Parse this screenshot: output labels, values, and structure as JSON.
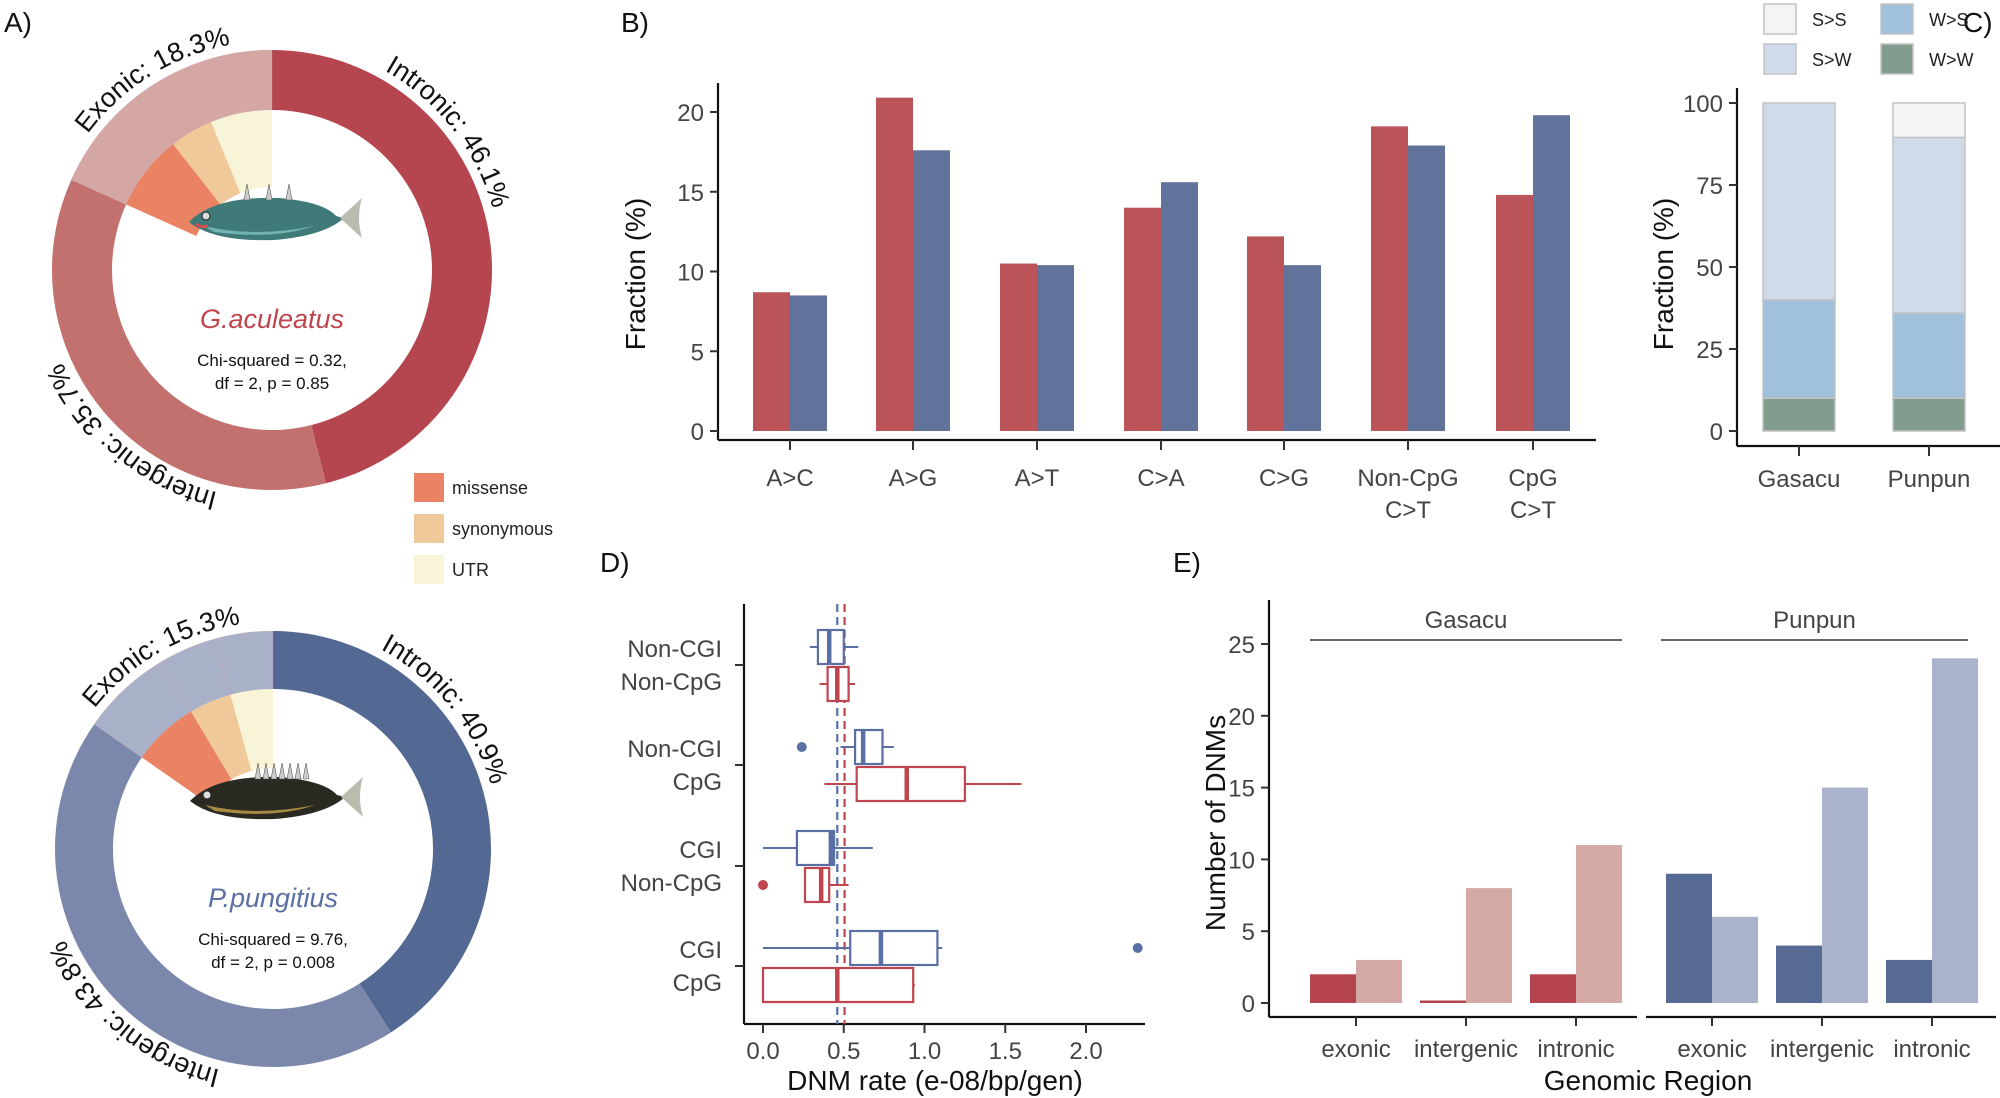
{
  "chart_data": [
    {
      "type": "pie",
      "variant": "donut",
      "panel": "A)",
      "species": "G.aculeatus",
      "species_color": "#c0454f",
      "stats": [
        "Chi-squared = 0.32,",
        "df = 2, p = 0.85"
      ],
      "slices": [
        {
          "name": "Intronic",
          "label": "Intronic: 46.1%",
          "value": 46.1,
          "color": "#b5454f"
        },
        {
          "name": "Intergenic",
          "label": "Intergenic: 35.7%",
          "value": 35.7,
          "color": "#c3716f"
        },
        {
          "name": "Exonic",
          "label": "Exonic: 18.3%",
          "value": 18.3,
          "color": "#d4a6a4"
        }
      ],
      "exonic_breakdown": [
        {
          "name": "UTR",
          "share": 0.34
        },
        {
          "name": "synonymous",
          "share": 0.24
        },
        {
          "name": "missense",
          "share": 0.42
        }
      ]
    },
    {
      "type": "pie",
      "variant": "donut",
      "species": "P.pungitius",
      "species_color": "#5a6fa3",
      "stats": [
        "Chi-squared = 9.76,",
        "df = 2, p = 0.008"
      ],
      "slices": [
        {
          "name": "Intronic",
          "label": "Intronic: 40.9%",
          "value": 40.9,
          "color": "#536892"
        },
        {
          "name": "Intergenic",
          "label": "Intergenic: 43.8%",
          "value": 43.8,
          "color": "#7b87ab"
        },
        {
          "name": "Exonic",
          "label": "Exonic: 15.3%",
          "value": 15.3,
          "color": "#a9b1c9"
        }
      ],
      "exonic_breakdown": [
        {
          "name": "UTR",
          "share": 0.28
        },
        {
          "name": "synonymous",
          "share": 0.28
        },
        {
          "name": "missense",
          "share": 0.44
        }
      ],
      "legend": [
        {
          "label": "missense",
          "color": "#ea8264"
        },
        {
          "label": "synonymous",
          "color": "#f0c99a"
        },
        {
          "label": "UTR",
          "color": "#f7f4d8"
        }
      ]
    },
    {
      "type": "bar",
      "panel": "B)",
      "ylabel": "Fraction (%)",
      "ylim": [
        0,
        22
      ],
      "yticks": [
        0,
        5,
        10,
        15,
        20
      ],
      "categories": [
        [
          "A>C"
        ],
        [
          "A>G"
        ],
        [
          "A>T"
        ],
        [
          "C>A"
        ],
        [
          "C>G"
        ],
        [
          "Non-CpG",
          "C>T"
        ],
        [
          "CpG",
          "C>T"
        ]
      ],
      "series": [
        {
          "values": [
            8.7,
            20.9,
            10.5,
            14.0,
            12.2,
            19.1,
            14.8
          ],
          "color": "#bb5459"
        },
        {
          "values": [
            8.5,
            17.6,
            10.4,
            15.6,
            10.4,
            17.9,
            19.8
          ],
          "color": "#61739b"
        }
      ]
    },
    {
      "type": "bar",
      "stacked": true,
      "panel": "C)",
      "ylabel": "Fraction (%)",
      "ylim": [
        0,
        100
      ],
      "yticks": [
        0,
        25,
        50,
        75,
        100
      ],
      "categories": [
        "Gasacu",
        "Punpun"
      ],
      "series": [
        {
          "name": "W>W",
          "values": [
            10,
            10
          ],
          "color": "#829d8e"
        },
        {
          "name": "W>S",
          "values": [
            30,
            26
          ],
          "color": "#a0c0dc"
        },
        {
          "name": "S>W",
          "values": [
            60,
            53.5
          ],
          "color": "#cfdbe8"
        },
        {
          "name": "S>S",
          "values": [
            0,
            10.5
          ],
          "color": "#f4f3f6"
        }
      ],
      "legend_order": [
        "S>S",
        "W>S",
        "S>W",
        "W>W"
      ],
      "legend_placement": "top"
    },
    {
      "type": "boxplot",
      "orientation": "horizontal",
      "panel": "D)",
      "xlabel": "DNM rate (e-08/bp/gen)",
      "xlim": [
        -0.1,
        2.35
      ],
      "xticks": [
        "0.0",
        "0.5",
        "1.0",
        "1.5",
        "2.0"
      ],
      "categories": [
        [
          "Non-CGI",
          "Non-CpG"
        ],
        [
          "Non-CGI",
          "CpG"
        ],
        [
          "CGI",
          "Non-CpG"
        ],
        [
          "CGI",
          "CpG"
        ]
      ],
      "reference_lines": [
        {
          "value": 0.46,
          "color": "#5a6fa3",
          "style": "dashed"
        },
        {
          "value": 0.505,
          "color": "#c0454f",
          "style": "dashed"
        }
      ],
      "series": [
        {
          "color": "#5a6fa3",
          "boxes": [
            {
              "min": 0.29,
              "q1": 0.34,
              "median": 0.41,
              "q3": 0.5,
              "max": 0.59,
              "outliers": []
            },
            {
              "min": 0.48,
              "q1": 0.57,
              "median": 0.62,
              "q3": 0.74,
              "max": 0.81,
              "outliers": [
                0.24
              ]
            },
            {
              "min": 0.0,
              "q1": 0.21,
              "median": 0.42,
              "q3": 0.44,
              "max": 0.68,
              "outliers": []
            },
            {
              "min": 0.0,
              "q1": 0.54,
              "median": 0.73,
              "q3": 1.08,
              "max": 1.11,
              "outliers": [
                2.32
              ]
            }
          ]
        },
        {
          "color": "#c0454f",
          "boxes": [
            {
              "min": 0.35,
              "q1": 0.4,
              "median": 0.46,
              "q3": 0.53,
              "max": 0.57,
              "outliers": []
            },
            {
              "min": 0.38,
              "q1": 0.58,
              "median": 0.89,
              "q3": 1.25,
              "max": 1.6,
              "outliers": []
            },
            {
              "min": 0.26,
              "q1": 0.26,
              "median": 0.36,
              "q3": 0.41,
              "max": 0.53,
              "outliers": [
                0.0
              ]
            },
            {
              "min": 0.0,
              "q1": 0.0,
              "median": 0.46,
              "q3": 0.93,
              "max": 0.94,
              "outliers": []
            }
          ]
        }
      ]
    },
    {
      "type": "bar",
      "panel": "E)",
      "ylabel": "Number of DNMs",
      "xlabel": "Genomic Region",
      "ylim": [
        0,
        27
      ],
      "yticks": [
        0,
        5,
        10,
        15,
        20,
        25
      ],
      "facets": [
        {
          "name": "Gasacu",
          "categories": [
            "exonic",
            "intergenic",
            "intronic"
          ],
          "series": [
            {
              "values": [
                2,
                0,
                2
              ],
              "color": "#b5444f"
            },
            {
              "values": [
                3,
                8,
                11
              ],
              "color": "#d4a8a5"
            }
          ]
        },
        {
          "name": "Punpun",
          "categories": [
            "exonic",
            "intergenic",
            "intronic"
          ],
          "series": [
            {
              "values": [
                9,
                4,
                3
              ],
              "color": "#566a94"
            },
            {
              "values": [
                6,
                15,
                24
              ],
              "color": "#abb2cb"
            }
          ]
        }
      ]
    }
  ]
}
